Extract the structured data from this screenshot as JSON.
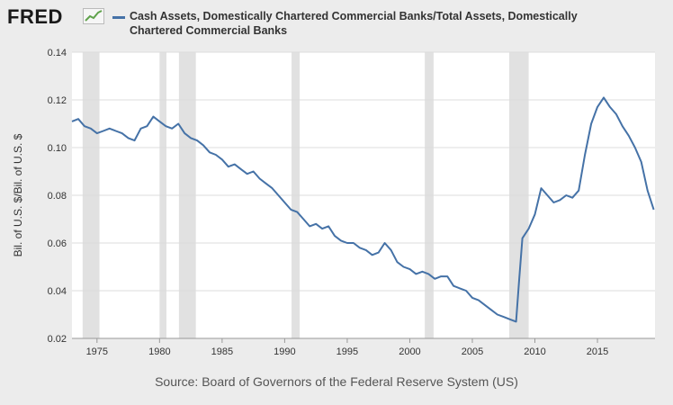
{
  "header": {
    "logo_text": "FRED",
    "legend_label": "Cash Assets, Domestically Chartered Commercial Banks/Total Assets, Domestically Chartered Commercial Banks"
  },
  "footer": {
    "source": "Source: Board of Governors of the Federal Reserve System (US)"
  },
  "chart_data": {
    "type": "line",
    "title": "",
    "ylabel": "Bil. of U.S. $/Bil. of U.S. $",
    "xlabel": "",
    "xlim": [
      1973.0,
      2019.6
    ],
    "ylim": [
      0.02,
      0.14
    ],
    "yticks": [
      0.02,
      0.04,
      0.06,
      0.08,
      0.1,
      0.12,
      0.14
    ],
    "ytick_labels": [
      "0.02",
      "0.04",
      "0.06",
      "0.08",
      "0.10",
      "0.12",
      "0.14"
    ],
    "xticks": [
      1975,
      1980,
      1985,
      1990,
      1995,
      2000,
      2005,
      2010,
      2015
    ],
    "xtick_labels": [
      "1975",
      "1980",
      "1985",
      "1990",
      "1995",
      "2000",
      "2005",
      "2010",
      "2015"
    ],
    "line_color": "#4572a7",
    "recession_color": "#e1e1e1",
    "recessions": [
      [
        1973.85,
        1975.2
      ],
      [
        1980.0,
        1980.55
      ],
      [
        1981.55,
        1982.9
      ],
      [
        1990.55,
        1991.2
      ],
      [
        2001.2,
        2001.9
      ],
      [
        2007.95,
        2009.5
      ]
    ],
    "series": [
      {
        "x": [
          1973.0,
          1973.5,
          1974.0,
          1974.5,
          1975.0,
          1975.5,
          1976.0,
          1976.5,
          1977.0,
          1977.5,
          1978.0,
          1978.5,
          1979.0,
          1979.5,
          1980.0,
          1980.5,
          1981.0,
          1981.5,
          1982.0,
          1982.5,
          1983.0,
          1983.5,
          1984.0,
          1984.5,
          1985.0,
          1985.5,
          1986.0,
          1986.5,
          1987.0,
          1987.5,
          1988.0,
          1988.5,
          1989.0,
          1989.5,
          1990.0,
          1990.5,
          1991.0,
          1991.5,
          1992.0,
          1992.5,
          1993.0,
          1993.5,
          1994.0,
          1994.5,
          1995.0,
          1995.5,
          1996.0,
          1996.5,
          1997.0,
          1997.5,
          1998.0,
          1998.5,
          1999.0,
          1999.5,
          2000.0,
          2000.5,
          2001.0,
          2001.5,
          2002.0,
          2002.5,
          2003.0,
          2003.5,
          2004.0,
          2004.5,
          2005.0,
          2005.5,
          2006.0,
          2006.5,
          2007.0,
          2007.5,
          2008.0,
          2008.5,
          2008.75,
          2009.0,
          2009.5,
          2010.0,
          2010.5,
          2011.0,
          2011.5,
          2012.0,
          2012.5,
          2013.0,
          2013.5,
          2014.0,
          2014.5,
          2015.0,
          2015.5,
          2016.0,
          2016.5,
          2017.0,
          2017.5,
          2018.0,
          2018.5,
          2019.0,
          2019.5
        ],
        "y": [
          0.111,
          0.112,
          0.109,
          0.108,
          0.106,
          0.107,
          0.108,
          0.107,
          0.106,
          0.104,
          0.103,
          0.108,
          0.109,
          0.113,
          0.111,
          0.109,
          0.108,
          0.11,
          0.106,
          0.104,
          0.103,
          0.101,
          0.098,
          0.097,
          0.095,
          0.092,
          0.093,
          0.091,
          0.089,
          0.09,
          0.087,
          0.085,
          0.083,
          0.08,
          0.077,
          0.074,
          0.073,
          0.07,
          0.067,
          0.068,
          0.066,
          0.067,
          0.063,
          0.061,
          0.06,
          0.06,
          0.058,
          0.057,
          0.055,
          0.056,
          0.06,
          0.057,
          0.052,
          0.05,
          0.049,
          0.047,
          0.048,
          0.047,
          0.045,
          0.046,
          0.046,
          0.042,
          0.041,
          0.04,
          0.037,
          0.036,
          0.034,
          0.032,
          0.03,
          0.029,
          0.028,
          0.027,
          0.045,
          0.062,
          0.066,
          0.072,
          0.083,
          0.08,
          0.077,
          0.078,
          0.08,
          0.079,
          0.082,
          0.097,
          0.11,
          0.117,
          0.121,
          0.117,
          0.114,
          0.109,
          0.105,
          0.1,
          0.094,
          0.082,
          0.074
        ]
      }
    ]
  }
}
